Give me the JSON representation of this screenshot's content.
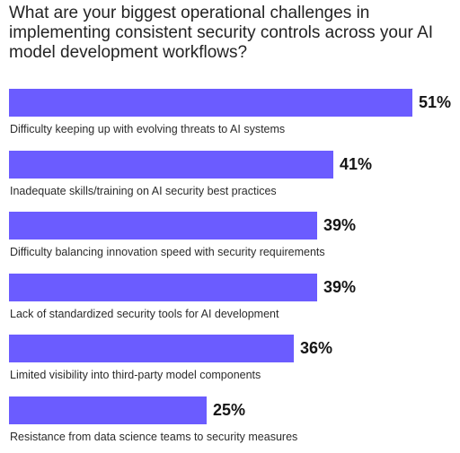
{
  "chart_data": {
    "type": "bar",
    "orientation": "horizontal",
    "title": "What are your biggest operational challenges in implementing consistent security controls across your AI model development workflows?",
    "xlabel": "",
    "ylabel": "",
    "xlim": [
      0,
      100
    ],
    "grid": false,
    "categories": [
      "Difficulty keeping up with evolving threats to AI systems",
      "Inadequate skills/training on AI security best practices",
      "Difficulty balancing innovation speed with security requirements",
      "Lack of standardized security tools for AI development",
      "Limited visibility into third-party model components",
      "Resistance from data science teams to security measures"
    ],
    "values": [
      51,
      41,
      39,
      39,
      36,
      25
    ],
    "value_labels": [
      "51%",
      "41%",
      "39%",
      "39%",
      "36%",
      "25%"
    ],
    "bar_color": "#6b5cff"
  }
}
